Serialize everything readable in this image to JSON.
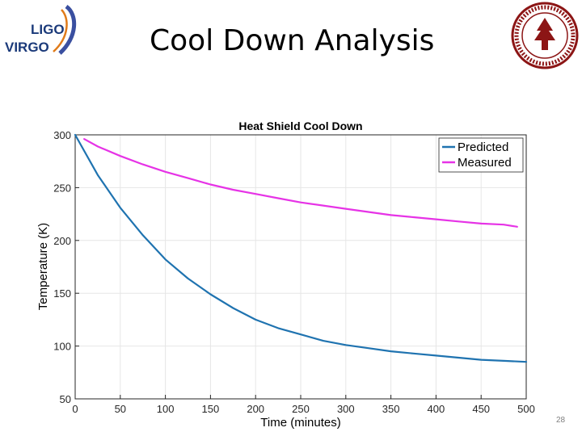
{
  "slide": {
    "title": "Cool Down Analysis",
    "page_number": "28",
    "logo_left": {
      "name": "ligo-virgo-logo",
      "line1": "LIGO",
      "line2": "VIRGO"
    },
    "logo_right": {
      "name": "stanford-university-seal"
    }
  },
  "colors": {
    "predicted": "#1f73b0",
    "measured": "#e633e6",
    "axis": "#262626",
    "grid": "#e6e6e6"
  },
  "chart_data": {
    "type": "line",
    "title": "Heat Shield Cool Down",
    "xlabel": "Time (minutes)",
    "ylabel": "Temperature (K)",
    "xlim": [
      0,
      500
    ],
    "ylim": [
      50,
      300
    ],
    "xticks": [
      0,
      50,
      100,
      150,
      200,
      250,
      300,
      350,
      400,
      450,
      500
    ],
    "yticks": [
      50,
      100,
      150,
      200,
      250,
      300
    ],
    "grid": true,
    "legend_position": "top-right",
    "series": [
      {
        "name": "Predicted",
        "color": "#1f73b0",
        "x": [
          0,
          25,
          50,
          75,
          100,
          125,
          150,
          175,
          200,
          225,
          250,
          275,
          300,
          325,
          350,
          375,
          400,
          425,
          450,
          475,
          500
        ],
        "y": [
          300,
          262,
          231,
          205,
          182,
          164,
          149,
          136,
          125,
          117,
          111,
          105,
          101,
          98,
          95,
          93,
          91,
          89,
          87,
          86,
          85
        ]
      },
      {
        "name": "Measured",
        "color": "#e633e6",
        "x": [
          10,
          25,
          50,
          75,
          100,
          125,
          150,
          175,
          200,
          225,
          250,
          275,
          300,
          325,
          350,
          375,
          400,
          425,
          450,
          475,
          490
        ],
        "y": [
          296,
          289,
          280,
          272,
          265,
          259,
          253,
          248,
          244,
          240,
          236,
          233,
          230,
          227,
          224,
          222,
          220,
          218,
          216,
          215,
          213
        ]
      }
    ]
  }
}
